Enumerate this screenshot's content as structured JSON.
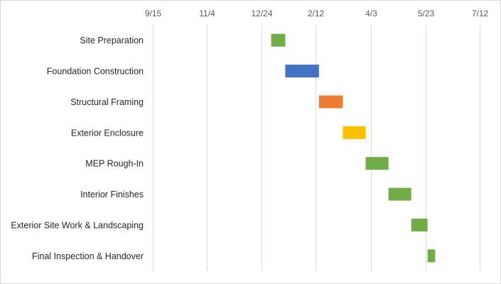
{
  "chart_data": {
    "type": "bar",
    "orientation": "horizontal",
    "title": "",
    "xlabel": "",
    "ylabel": "",
    "x_ticks": [
      "9/15",
      "11/4",
      "12/24",
      "2/12",
      "4/3",
      "5/23",
      "7/12"
    ],
    "x_axis_position": "top",
    "grid": true,
    "legend": "none",
    "xlim": [
      "9/15",
      "7/12"
    ],
    "tasks": [
      {
        "name": "Site Preparation",
        "start": "1/2",
        "end": "1/15",
        "color": "#70ad47"
      },
      {
        "name": "Foundation Construction",
        "start": "1/15",
        "end": "2/15",
        "color": "#4472c4"
      },
      {
        "name": "Structural Framing",
        "start": "2/15",
        "end": "3/8",
        "color": "#ed7d31"
      },
      {
        "name": "Exterior Enclosure",
        "start": "3/8",
        "end": "3/29",
        "color": "#ffc000"
      },
      {
        "name": "MEP Rough-In",
        "start": "3/29",
        "end": "4/19",
        "color": "#70ad47"
      },
      {
        "name": "Interior Finishes",
        "start": "4/19",
        "end": "5/10",
        "color": "#70ad47"
      },
      {
        "name": "Exterior Site Work & Landscaping",
        "start": "5/10",
        "end": "5/25",
        "color": "#70ad47"
      },
      {
        "name": "Final Inspection & Handover",
        "start": "5/25",
        "end": "6/1",
        "color": "#70ad47"
      }
    ]
  }
}
